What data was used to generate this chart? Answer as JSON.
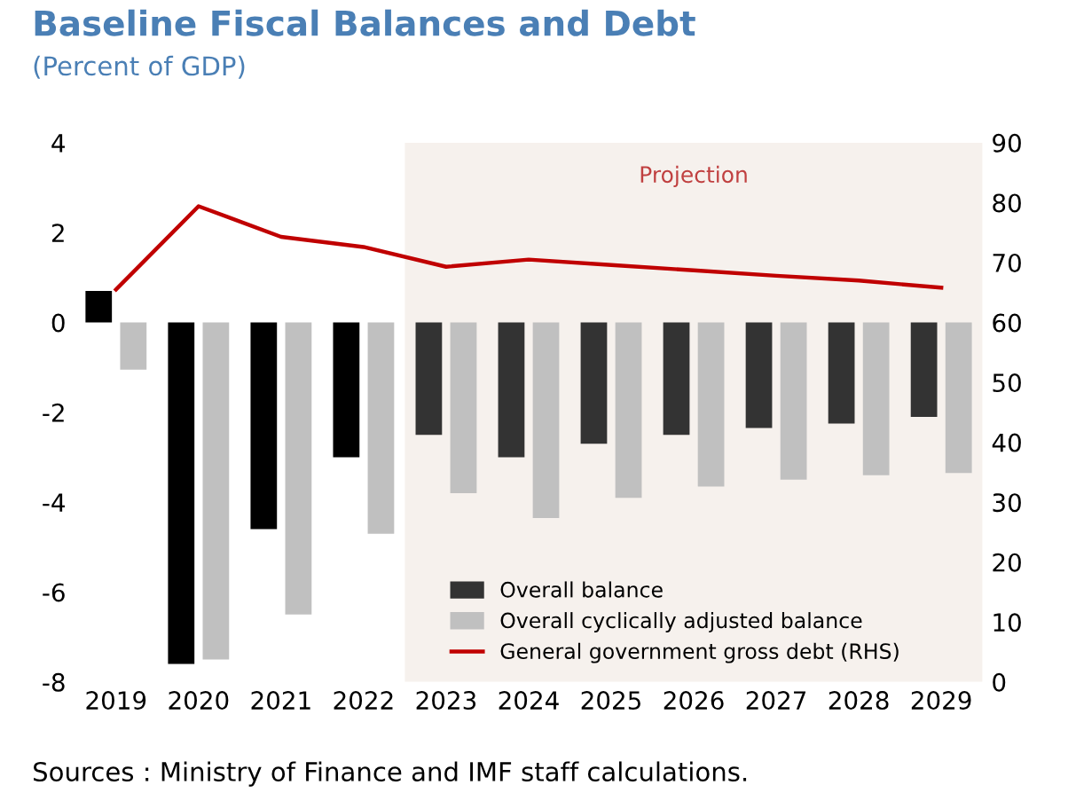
{
  "chart_data": {
    "type": "bar",
    "title": "Baseline Fiscal Balances and Debt",
    "subtitle": "(Percent of GDP)",
    "categories": [
      "2019",
      "2020",
      "2021",
      "2022",
      "2023",
      "2024",
      "2025",
      "2026",
      "2027",
      "2028",
      "2029"
    ],
    "series": [
      {
        "name": "Overall balance",
        "color": "#333333",
        "colors": [
          "#000000",
          "#000000",
          "#000000",
          "#000000",
          "#333333",
          "#333333",
          "#333333",
          "#333333",
          "#333333",
          "#333333",
          "#333333"
        ],
        "values": [
          0.7,
          -7.6,
          -4.6,
          -3.0,
          -2.5,
          -3.0,
          -2.7,
          -2.5,
          -2.35,
          -2.25,
          -2.1
        ]
      },
      {
        "name": "Overall cyclically adjusted balance",
        "color": "#c0c0c0",
        "values": [
          -1.05,
          -7.5,
          -6.5,
          -4.7,
          -3.8,
          -4.35,
          -3.9,
          -3.65,
          -3.5,
          -3.4,
          -3.35
        ]
      },
      {
        "name": "General government gross debt (RHS)",
        "type": "line",
        "axis": "y2",
        "color": "#c00000",
        "values": [
          65.5,
          79.4,
          74.3,
          72.6,
          69.3,
          70.5,
          69.6,
          68.7,
          67.8,
          67.0,
          65.8
        ]
      }
    ],
    "ylim": [
      -8,
      4
    ],
    "yticks": [
      -8,
      -6,
      -4,
      -2,
      0,
      2,
      4
    ],
    "y2lim": [
      0,
      90
    ],
    "y2ticks": [
      0,
      10,
      20,
      30,
      40,
      50,
      60,
      70,
      80,
      90
    ],
    "bands": [
      {
        "axis": "x",
        "from": "2023",
        "to": "2029",
        "label": "Projection",
        "color": "#f6f1ed"
      }
    ],
    "legend": "bottom right",
    "grid": false,
    "annotations": [
      "Sources : Ministry of Finance and IMF staff calculations."
    ]
  }
}
